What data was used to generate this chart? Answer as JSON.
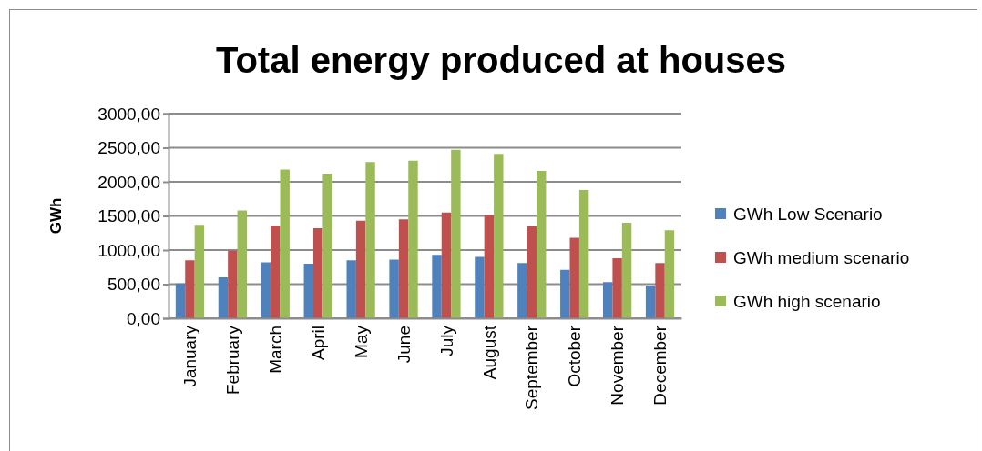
{
  "chart_data": {
    "type": "bar",
    "title": "Total energy produced at houses",
    "ylabel": "GWh",
    "categories": [
      "January",
      "February",
      "March",
      "April",
      "May",
      "June",
      "July",
      "August",
      "September",
      "October",
      "November",
      "December"
    ],
    "series": [
      {
        "name": "GWh Low Scenario",
        "color": "#4f81bd",
        "values": [
          510,
          600,
          820,
          800,
          850,
          860,
          930,
          900,
          810,
          710,
          530,
          480
        ]
      },
      {
        "name": "GWh medium scenario",
        "color": "#c0504d",
        "values": [
          850,
          990,
          1360,
          1320,
          1430,
          1450,
          1550,
          1510,
          1350,
          1180,
          880,
          810
        ]
      },
      {
        "name": "GWh high scenario",
        "color": "#9bbb59",
        "values": [
          1370,
          1580,
          2180,
          2120,
          2290,
          2310,
          2470,
          2410,
          2160,
          1880,
          1400,
          1290
        ]
      }
    ],
    "ylim": [
      0,
      3000
    ],
    "yticks": [
      {
        "value": 0,
        "label": "0,00"
      },
      {
        "value": 500,
        "label": "500,00"
      },
      {
        "value": 1000,
        "label": "1000,00"
      },
      {
        "value": 1500,
        "label": "1500,00"
      },
      {
        "value": 2000,
        "label": "2000,00"
      },
      {
        "value": 2500,
        "label": "2500,00"
      },
      {
        "value": 3000,
        "label": "3000,00"
      }
    ],
    "grid": "y",
    "legend": "right"
  }
}
